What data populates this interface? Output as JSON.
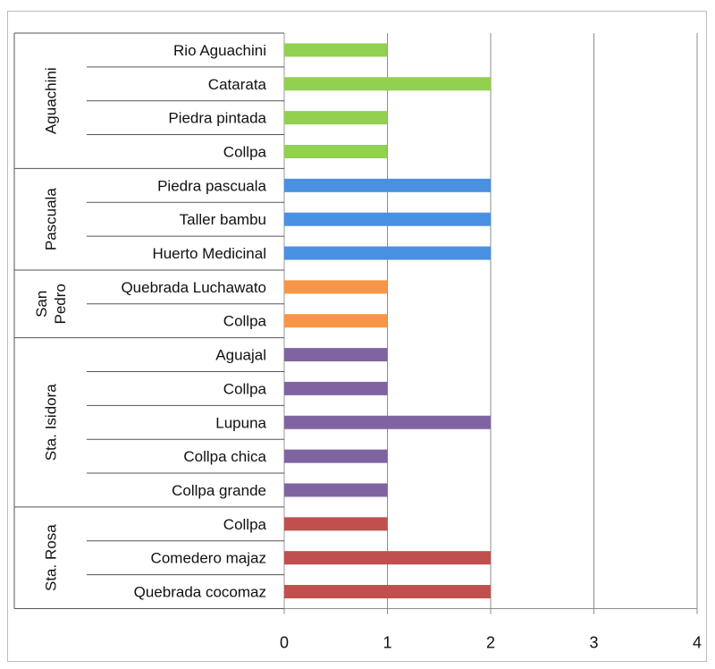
{
  "chart_data": {
    "type": "bar",
    "orientation": "horizontal",
    "xlim": [
      0,
      4
    ],
    "x_ticks": [
      "0",
      "1",
      "2",
      "3",
      "4"
    ],
    "grid": "vertical",
    "legend": "none",
    "groups": [
      {
        "name": "Aguachini",
        "label_lines": [
          "Aguachini"
        ],
        "color": "#92d050",
        "items": [
          {
            "label": "Rio Aguachini",
            "value": 1
          },
          {
            "label": "Catarata",
            "value": 2
          },
          {
            "label": "Piedra pintada",
            "value": 1
          },
          {
            "label": "Collpa",
            "value": 1
          }
        ]
      },
      {
        "name": "Pascuala",
        "label_lines": [
          "Pascuala"
        ],
        "color": "#4a90e2",
        "items": [
          {
            "label": "Piedra pascuala",
            "value": 2
          },
          {
            "label": "Taller bambu",
            "value": 2
          },
          {
            "label": "Huerto Medicinal",
            "value": 2
          }
        ]
      },
      {
        "name": "San Pedro",
        "label_lines": [
          "San",
          "Pedro"
        ],
        "color": "#f79646",
        "items": [
          {
            "label": "Quebrada Luchawato",
            "value": 1
          },
          {
            "label": "Collpa",
            "value": 1
          }
        ]
      },
      {
        "name": "Sta. Isidora",
        "label_lines": [
          "Sta. Isidora"
        ],
        "color": "#8064a2",
        "items": [
          {
            "label": "Aguajal",
            "value": 1
          },
          {
            "label": "Collpa",
            "value": 1
          },
          {
            "label": "Lupuna",
            "value": 2
          },
          {
            "label": "Collpa chica",
            "value": 1
          },
          {
            "label": "Collpa grande",
            "value": 1
          }
        ]
      },
      {
        "name": "Sta. Rosa",
        "label_lines": [
          "Sta. Rosa"
        ],
        "color": "#c0504d",
        "items": [
          {
            "label": "Collpa",
            "value": 1
          },
          {
            "label": "Comedero majaz",
            "value": 2
          },
          {
            "label": "Quebrada cocomaz",
            "value": 2
          }
        ]
      }
    ]
  }
}
